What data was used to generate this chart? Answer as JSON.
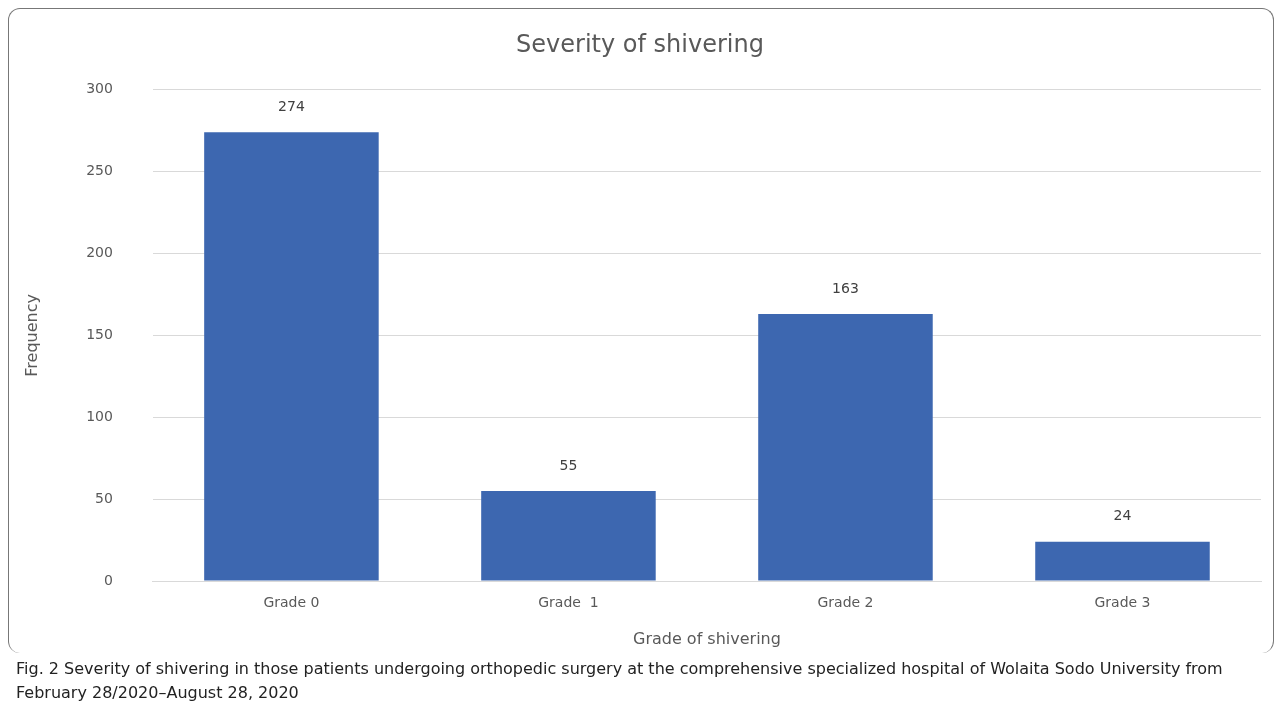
{
  "chart_data": {
    "type": "bar",
    "title": "Severity of shivering",
    "xlabel": "Grade of shivering",
    "ylabel": "Frequency",
    "categories": [
      "Grade 0",
      "Grade  1",
      "Grade 2",
      "Grade 3"
    ],
    "values": [
      274,
      55,
      163,
      24
    ],
    "color": "#3d67b0",
    "ylim": [
      0,
      300
    ],
    "yticks": [
      0,
      50,
      100,
      150,
      200,
      250,
      300
    ],
    "grid": "y",
    "legend": false,
    "data_labels": true,
    "annotations": [
      "Fig. 2  Severity of shivering in those patients undergoing orthopedic surgery at the comprehensive specialized hospital of Wolaita Sodo University from February 28/2020–August 28, 2020"
    ]
  }
}
